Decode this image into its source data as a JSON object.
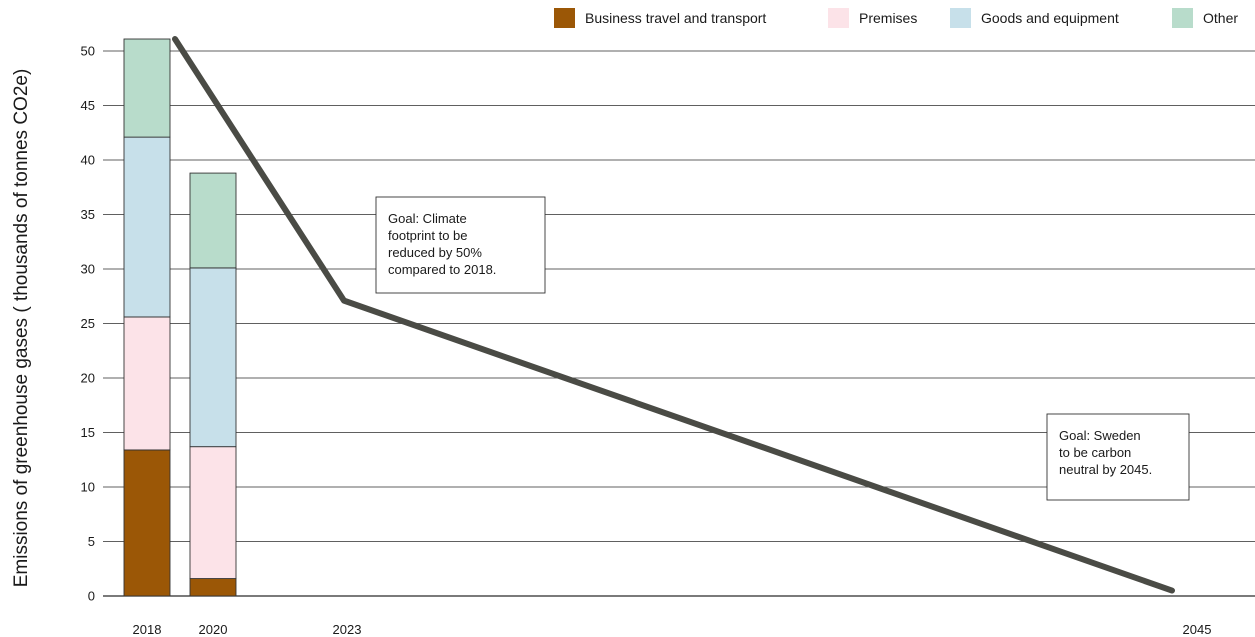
{
  "chart_data": {
    "type": "bar",
    "ylabel": "Emissions of greenhouse gases ( thousands of tonnes CO2e)",
    "xlabel": "",
    "ylim": [
      0,
      50
    ],
    "yticks": [
      0,
      5,
      10,
      15,
      20,
      25,
      30,
      35,
      40,
      45,
      50
    ],
    "grid": true,
    "legend_position": "top-right",
    "x_ticks": [
      "2018",
      "2020",
      "2023",
      "2045"
    ],
    "categories": [
      "2018",
      "2020"
    ],
    "stacked": true,
    "series": [
      {
        "name": "Business travel and transport",
        "color": "#9b5706",
        "values": [
          13.4,
          1.6
        ]
      },
      {
        "name": "Premises",
        "color": "#fce3e8",
        "values": [
          12.2,
          12.1
        ]
      },
      {
        "name": "Goods and equipment",
        "color": "#c7e0ea",
        "values": [
          16.5,
          16.4
        ]
      },
      {
        "name": "Other",
        "color": "#b8dccb",
        "values": [
          9.0,
          8.7
        ]
      }
    ],
    "goal_line": {
      "color": "#4a4b45",
      "points": [
        {
          "x": "2018",
          "y": 51.1
        },
        {
          "x": "2023",
          "y": 27.1
        },
        {
          "x": "2045",
          "y": 0.5
        }
      ]
    },
    "annotations": [
      {
        "lines": [
          "Goal: Climate",
          "footprint to be",
          "reduced by 50%",
          "compared to 2018."
        ]
      },
      {
        "lines": [
          "Goal: Sweden",
          "to be carbon",
          "neutral by 2045."
        ]
      }
    ]
  }
}
